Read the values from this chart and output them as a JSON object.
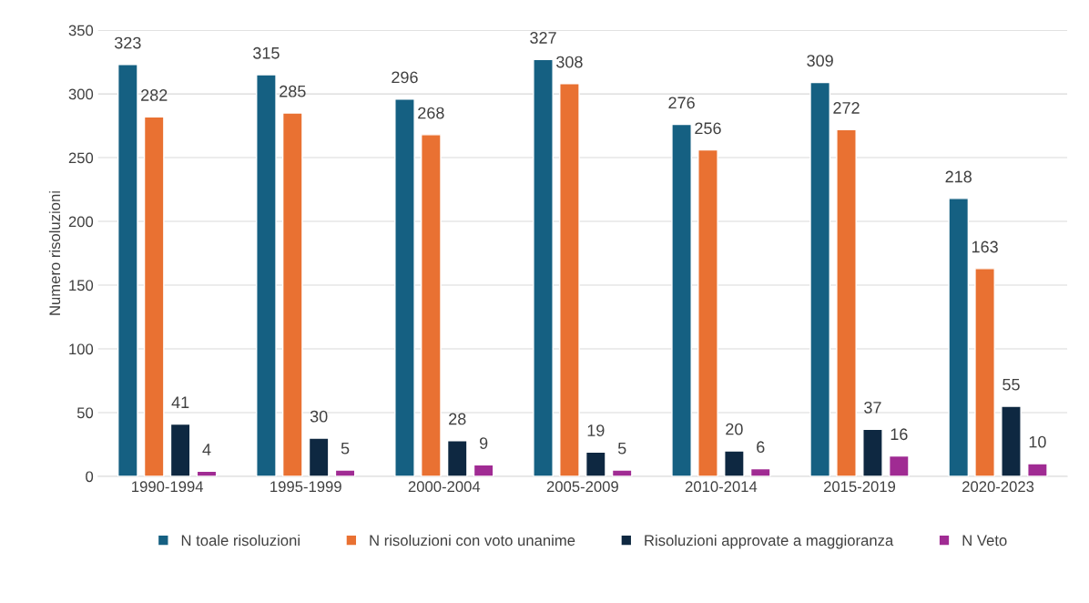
{
  "chart_data": {
    "type": "bar",
    "ylabel": "Numero risoluzioni",
    "categories": [
      "1990-1994",
      "1995-1999",
      "2000-2004",
      "2005-2009",
      "2010-2014",
      "2015-2019",
      "2020-2023"
    ],
    "series": [
      {
        "name": "N toale risoluzioni",
        "color": "#156082",
        "values": [
          323,
          315,
          296,
          327,
          276,
          309,
          218
        ]
      },
      {
        "name": "N risoluzioni con voto unanime",
        "color": "#e97132",
        "values": [
          282,
          285,
          268,
          308,
          256,
          272,
          163
        ]
      },
      {
        "name": "Risoluzioni approvate a maggioranza",
        "color": "#0e2841",
        "values": [
          41,
          30,
          28,
          19,
          20,
          37,
          55
        ]
      },
      {
        "name": "N Veto",
        "color": "#a02b93",
        "values": [
          4,
          5,
          9,
          5,
          6,
          16,
          10
        ]
      }
    ],
    "ylim": [
      0,
      350
    ],
    "yticks": [
      0,
      50,
      100,
      150,
      200,
      250,
      300,
      350
    ],
    "grid": "y",
    "legend": "bottom",
    "data_labels": true
  }
}
